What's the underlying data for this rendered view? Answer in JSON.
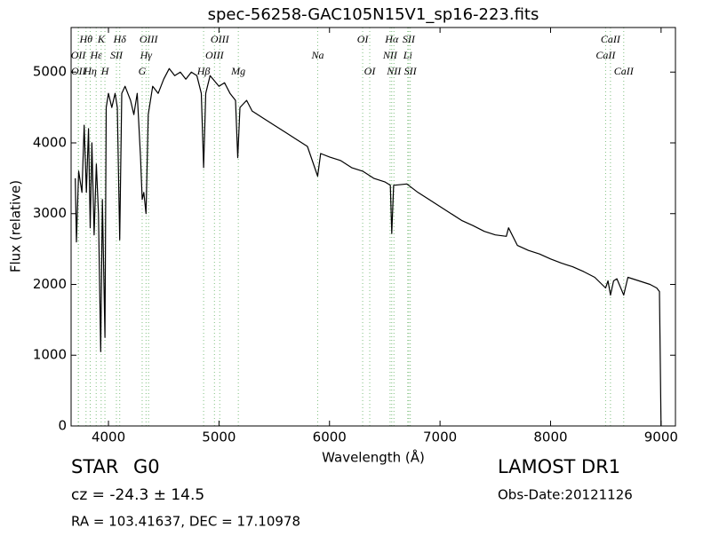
{
  "chart_data": {
    "type": "line",
    "title": "spec-56258-GAC105N15V1_sp16-223.fits",
    "xlabel": "Wavelength (Å)",
    "ylabel": "Flux (relative)",
    "xlim": [
      3662,
      9130
    ],
    "ylim": [
      0,
      5630
    ],
    "xticks": [
      4000,
      5000,
      6000,
      7000,
      8000,
      9000
    ],
    "yticks": [
      0,
      1000,
      2000,
      3000,
      4000,
      5000
    ],
    "marker_color": "#7fbf7f",
    "x": [
      3700,
      3710,
      3730,
      3760,
      3780,
      3800,
      3820,
      3835,
      3850,
      3870,
      3890,
      3910,
      3930,
      3945,
      3968,
      3980,
      4000,
      4030,
      4060,
      4080,
      4102,
      4120,
      4150,
      4200,
      4230,
      4260,
      4290,
      4305,
      4320,
      4340,
      4360,
      4400,
      4450,
      4500,
      4550,
      4600,
      4650,
      4700,
      4750,
      4800,
      4840,
      4861,
      4880,
      4920,
      5000,
      5050,
      5100,
      5150,
      5170,
      5190,
      5250,
      5300,
      5400,
      5500,
      5600,
      5700,
      5800,
      5893,
      5920,
      6000,
      6100,
      6200,
      6300,
      6400,
      6500,
      6550,
      6563,
      6580,
      6700,
      6800,
      6900,
      7000,
      7100,
      7200,
      7300,
      7400,
      7500,
      7600,
      7620,
      7700,
      7800,
      7900,
      8000,
      8100,
      8200,
      8300,
      8400,
      8498,
      8520,
      8542,
      8570,
      8600,
      8662,
      8700,
      8800,
      8900,
      8960,
      8985,
      9000
    ],
    "series": [
      {
        "color": "#000000",
        "values": [
          3500,
          2600,
          3600,
          3300,
          4250,
          3300,
          4200,
          2800,
          4000,
          2700,
          3700,
          3000,
          1050,
          3200,
          1250,
          4500,
          4700,
          4500,
          4700,
          4500,
          2630,
          4700,
          4800,
          4600,
          4400,
          4700,
          3800,
          3200,
          3300,
          3000,
          4400,
          4800,
          4700,
          4900,
          5050,
          4950,
          5000,
          4900,
          5000,
          4950,
          4700,
          3650,
          4700,
          4950,
          4800,
          4850,
          4700,
          4600,
          3790,
          4500,
          4600,
          4450,
          4350,
          4250,
          4150,
          4050,
          3950,
          3530,
          3850,
          3800,
          3750,
          3650,
          3600,
          3500,
          3450,
          3400,
          2720,
          3400,
          3420,
          3300,
          3200,
          3100,
          3000,
          2900,
          2830,
          2750,
          2700,
          2680,
          2800,
          2550,
          2480,
          2430,
          2360,
          2300,
          2250,
          2180,
          2100,
          1950,
          2050,
          1850,
          2050,
          2080,
          1850,
          2100,
          2050,
          2000,
          1950,
          1900,
          0
        ]
      }
    ],
    "line_labels": [
      [
        {
          "label": "Hθ",
          "wavelength": 3797
        },
        {
          "label": "K",
          "wavelength": 3934
        },
        {
          "label": "Hδ",
          "wavelength": 4102
        },
        {
          "label": "OIII",
          "wavelength": 4363
        },
        {
          "label": "OIII",
          "wavelength": 5007
        },
        {
          "label": "OI",
          "wavelength": 6300
        },
        {
          "label": "Hα",
          "wavelength": 6563
        },
        {
          "label": "SII",
          "wavelength": 6717
        },
        {
          "label": "CaII",
          "wavelength": 8542
        }
      ],
      [
        {
          "label": "OII",
          "wavelength": 3727
        },
        {
          "label": "Hε",
          "wavelength": 3889
        },
        {
          "label": "SII",
          "wavelength": 4072
        },
        {
          "label": "Hγ",
          "wavelength": 4340
        },
        {
          "label": "OIII",
          "wavelength": 4959
        },
        {
          "label": "Na",
          "wavelength": 5893
        },
        {
          "label": "NII",
          "wavelength": 6548
        },
        {
          "label": "Li",
          "wavelength": 6708
        },
        {
          "label": "CaII",
          "wavelength": 8498
        }
      ],
      [
        {
          "label": "OII",
          "wavelength": 3729
        },
        {
          "label": "Hη",
          "wavelength": 3835
        },
        {
          "label": "H",
          "wavelength": 3968
        },
        {
          "label": "G",
          "wavelength": 4305
        },
        {
          "label": "Hβ",
          "wavelength": 4861
        },
        {
          "label": "Mg",
          "wavelength": 5175
        },
        {
          "label": "OI",
          "wavelength": 6364
        },
        {
          "label": "NII",
          "wavelength": 6583
        },
        {
          "label": "SII",
          "wavelength": 6731
        },
        {
          "label": "CaII",
          "wavelength": 8662
        }
      ]
    ]
  },
  "info": {
    "object_class": "STAR",
    "subclass": "G0",
    "redshift": "cz = -24.3 ± 14.5",
    "coordinates": "RA = 103.41637, DEC = 17.10978",
    "survey": "LAMOST DR1",
    "obs_date": "Obs-Date:20121126"
  }
}
